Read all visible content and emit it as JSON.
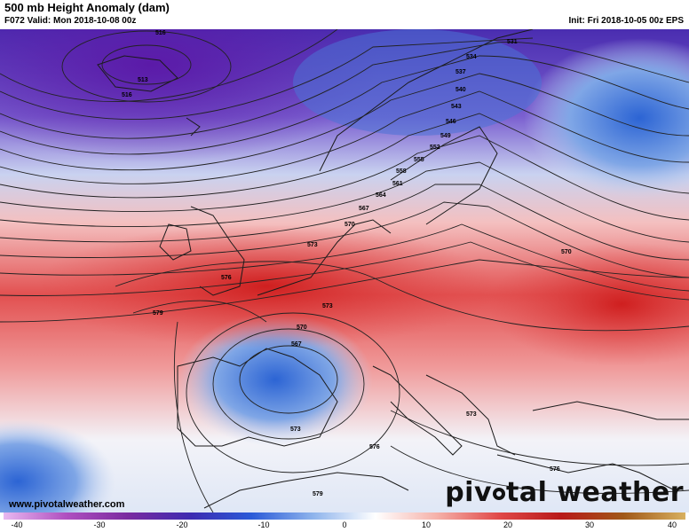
{
  "header": {
    "title": "500 mb Height Anomaly (dam)",
    "valid": "F072 Valid: Mon 2018-10-08 00z",
    "init": "Init: Fri 2018-10-05 00z EPS"
  },
  "map": {
    "contour_labels": [
      "516",
      "513",
      "516",
      "531",
      "534",
      "537",
      "540",
      "543",
      "546",
      "549",
      "552",
      "555",
      "558",
      "561",
      "564",
      "567",
      "570",
      "573",
      "576",
      "579",
      "573",
      "570",
      "567",
      "573",
      "576",
      "579",
      "576",
      "573",
      "570"
    ],
    "colors": {
      "strong_negative": "#6a2ab8",
      "negative": "#3f6fd8",
      "neutral": "#e9eef8",
      "positive": "#e65a5a",
      "strong_positive": "#c81e1e"
    }
  },
  "footer": {
    "credit": "www.pivotalweather.com",
    "brand_left": "piv",
    "brand_right": "tal weather"
  },
  "colorbar": {
    "labels": [
      "-40",
      "-30",
      "-20",
      "-10",
      "0",
      "10",
      "20",
      "30",
      "40"
    ],
    "gradient": [
      "#e8b8f0",
      "#b050c0",
      "#7a2aa0",
      "#3e2ab0",
      "#2a5ad8",
      "#8fb4ec",
      "#ffffff",
      "#f5b0a8",
      "#e04848",
      "#b81a1a",
      "#a05818",
      "#d8b060"
    ]
  }
}
